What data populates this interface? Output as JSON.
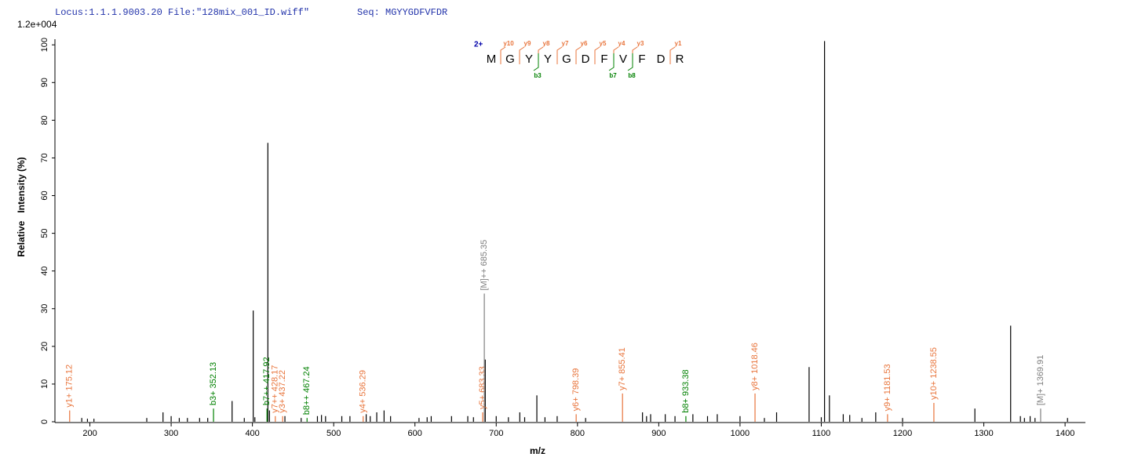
{
  "chart_data": {
    "type": "spectrum",
    "header_locus": "Locus:1.1.1.9003.20 File:\"128mix_001_ID.wiff\"",
    "header_seq": "Seq: MGYYGDFVFDR",
    "scale_label": "1.2e+004",
    "y_label": "Relative   Intensity (%)",
    "x_label": "m/z",
    "xlim": [
      157,
      1425
    ],
    "ylim": [
      0,
      101.5
    ],
    "xticks": [
      200,
      300,
      400,
      500,
      600,
      700,
      800,
      900,
      1000,
      1100,
      1200,
      1300,
      1400
    ],
    "yticks": [
      0,
      10,
      20,
      30,
      40,
      50,
      60,
      70,
      80,
      90,
      100
    ],
    "color": "#000000",
    "x": [
      190,
      197,
      205,
      270,
      290,
      300,
      310,
      320,
      335,
      345,
      375,
      390,
      401,
      403,
      419,
      421,
      440,
      460,
      480,
      485,
      490,
      510,
      520,
      540,
      545,
      553,
      562,
      570,
      605,
      615,
      620,
      645,
      665,
      672,
      686.5,
      700,
      715,
      729,
      735,
      750,
      760,
      775,
      810,
      880,
      885,
      890,
      908,
      920,
      942,
      960,
      972,
      1000,
      1030,
      1045,
      1085,
      1100,
      1104,
      1110,
      1127,
      1135,
      1150,
      1167,
      1200,
      1289,
      1333,
      1345,
      1350,
      1357,
      1363,
      1403
    ],
    "values": [
      1,
      0.8,
      0.8,
      1,
      2.5,
      1.5,
      1,
      1,
      1,
      1,
      5.5,
      1,
      29.5,
      1.2,
      74,
      3,
      1.5,
      1,
      1.5,
      1.8,
      1.5,
      1.5,
      1.5,
      2,
      1.5,
      2.5,
      3,
      1.5,
      1,
      1.2,
      1.5,
      1.5,
      1.5,
      1.2,
      16.5,
      1.5,
      1.2,
      2.5,
      1.2,
      7,
      1.2,
      1.5,
      1,
      2.5,
      1.5,
      2,
      2,
      1.5,
      2,
      1.5,
      2,
      1.5,
      1,
      2.5,
      14.5,
      1.2,
      101,
      7,
      2,
      1.8,
      1,
      2.5,
      1,
      3.5,
      25.5,
      1.5,
      1,
      1.5,
      1,
      1
    ],
    "annotations": [
      {
        "text": "y1+ 175.12",
        "x": 175.12,
        "value": 3,
        "color": "#e8743b"
      },
      {
        "text": "b3+ 352.13",
        "x": 352.13,
        "value": 3.5,
        "color": "#008000"
      },
      {
        "text": "b7++ 417.92",
        "x": 417.92,
        "value": 3.5,
        "color": "#008000"
      },
      {
        "text": "y7++ 428.17",
        "x": 428.17,
        "value": 1.5,
        "color": "#e8743b"
      },
      {
        "text": "y3+ 437.22",
        "x": 437.22,
        "value": 1.5,
        "color": "#e8743b"
      },
      {
        "text": "b8++ 467.24",
        "x": 467.24,
        "value": 1,
        "color": "#008000"
      },
      {
        "text": "y4+ 536.29",
        "x": 536.29,
        "value": 1.5,
        "color": "#e8743b"
      },
      {
        "text": "y5+ 683.33",
        "x": 683.33,
        "value": 2.5,
        "color": "#e8743b"
      },
      {
        "text": "[M]++ 685.35",
        "x": 685.35,
        "value": 34,
        "color": "#808080"
      },
      {
        "text": "y6+ 798.39",
        "x": 798.39,
        "value": 2,
        "color": "#e8743b"
      },
      {
        "text": "y7+ 855.41",
        "x": 855.41,
        "value": 7.5,
        "color": "#e8743b"
      },
      {
        "text": "b8+ 933.38",
        "x": 933.38,
        "value": 1.5,
        "color": "#008000"
      },
      {
        "text": "y8+ 1018.46",
        "x": 1018.46,
        "value": 7.5,
        "color": "#e8743b"
      },
      {
        "text": "y9+ 1181.53",
        "x": 1181.53,
        "value": 2,
        "color": "#e8743b"
      },
      {
        "text": "y10+ 1238.55",
        "x": 1238.55,
        "value": 5,
        "color": "#e8743b"
      },
      {
        "text": "[M]+ 1369.91",
        "x": 1369.91,
        "value": 3.5,
        "color": "#808080"
      }
    ],
    "peptide": {
      "charge": "2+",
      "residues": [
        "M",
        "G",
        "Y",
        "Y",
        "G",
        "D",
        "F",
        "V",
        "F",
        "D",
        "R"
      ],
      "y_ions": [
        "y10",
        "y9",
        "y8",
        "y7",
        "y6",
        "y5",
        "y4",
        "y3",
        null,
        "y1"
      ],
      "b_ions": [
        null,
        null,
        "b3",
        null,
        null,
        null,
        "b7",
        "b8",
        null,
        null
      ],
      "y_color": "#e8743b",
      "b_color": "#008000",
      "charge_color": "#0000aa"
    }
  }
}
